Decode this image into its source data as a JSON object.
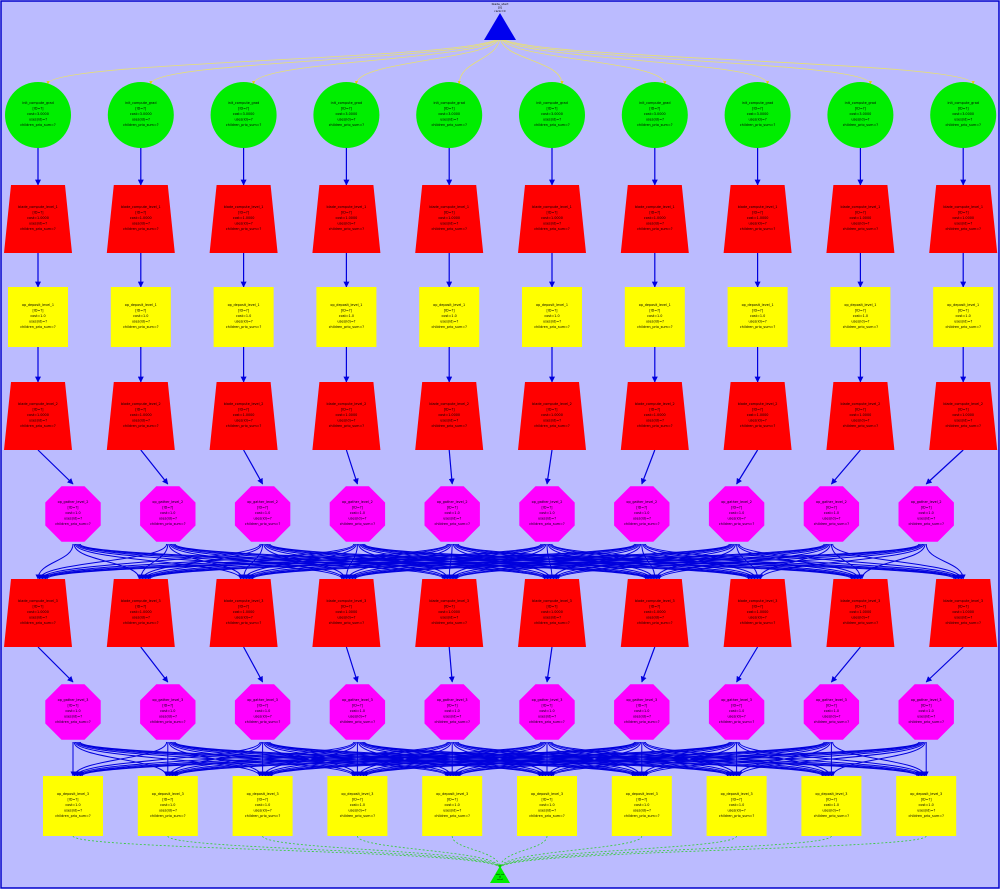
{
  "graph": {
    "background": "#bbbbff",
    "border_color": "#0000cc",
    "edge_color": "#0000dd",
    "source_edge_color": "#e8e070",
    "sink_edge_color": "#33cc33",
    "root": {
      "label_lines": [
        "blade_start",
        "[0]",
        "rank=0"
      ],
      "color": "#0000ee",
      "shape": "triangle"
    },
    "sink": {
      "label_lines": [
        "blade_end",
        "[0]",
        "rank=9"
      ],
      "color": "#00ee00",
      "shape": "triangle"
    },
    "columns": 10,
    "layers": [
      {
        "kind": "circle",
        "color": "#00ee00",
        "label_lines": [
          "init_compute_grad",
          "[ID=?]",
          "cost=3.0000",
          "uses(id)=?",
          "children_prio_sum=?"
        ]
      },
      {
        "kind": "trapezoid",
        "color": "#ff0000",
        "label_lines": [
          "blade_compute_level_1",
          "[ID=?]",
          "cost=1.0000",
          "uses(id)=?",
          "children_prio_sum=?"
        ]
      },
      {
        "kind": "square",
        "color": "#ffff00",
        "label_lines": [
          "op_deposit_level_1",
          "[ID=?]",
          "cost=1.0",
          "uses(id)=?",
          "children_prio_sum=?"
        ]
      },
      {
        "kind": "trapezoid",
        "color": "#ff0000",
        "label_lines": [
          "blade_compute_level_2",
          "[ID=?]",
          "cost=1.0000",
          "uses(id)=?",
          "children_prio_sum=?"
        ]
      },
      {
        "kind": "octagon",
        "color": "#ff00ff",
        "label_lines": [
          "op_gather_level_2",
          "[ID=?]",
          "cost=1.0",
          "uses(id)=?",
          "children_prio_sum=?"
        ]
      },
      {
        "kind": "trapezoid",
        "color": "#ff0000",
        "label_lines": [
          "blade_compute_level_3",
          "[ID=?]",
          "cost=1.0000",
          "uses(id)=?",
          "children_prio_sum=?"
        ]
      },
      {
        "kind": "octagon",
        "color": "#ff00ff",
        "label_lines": [
          "op_gather_level_3",
          "[ID=?]",
          "cost=1.0",
          "uses(id)=?",
          "children_prio_sum=?"
        ]
      },
      {
        "kind": "square",
        "color": "#ffff00",
        "label_lines": [
          "op_deposit_level_3",
          "[ID=?]",
          "cost=1.0",
          "uses(id)=?",
          "children_prio_sum=?"
        ]
      }
    ]
  }
}
